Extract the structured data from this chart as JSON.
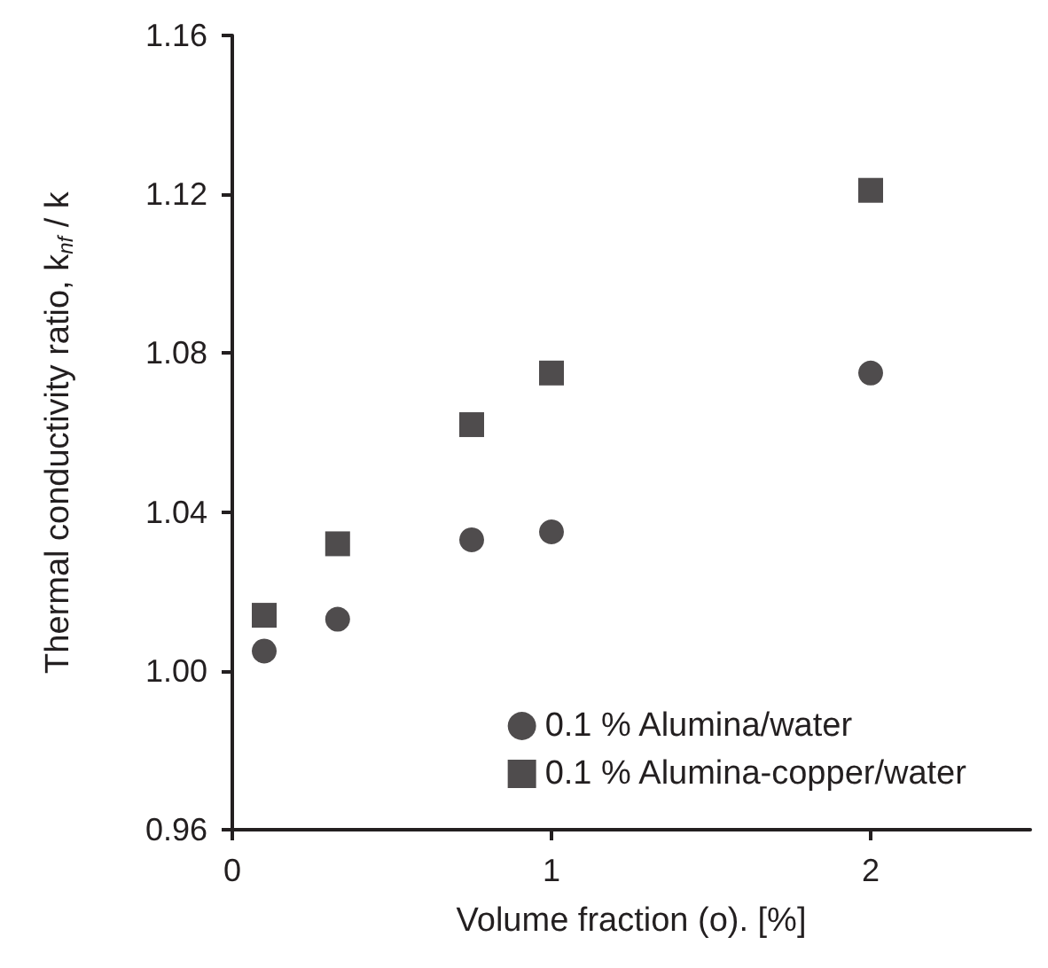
{
  "chart_data": {
    "type": "scatter",
    "xlabel": "Volume fraction (o). [%]",
    "ylabel": "Thermal conductivity ratio, k$_{nf}$ / k",
    "x": [
      0.1,
      0.33,
      0.75,
      1,
      2
    ],
    "series": [
      {
        "name": "0.1 % Alumina/water",
        "color": "#231f20",
        "marker": "circle",
        "values": [
          1.005,
          1.013,
          1.033,
          1.035,
          1.075
        ]
      },
      {
        "name": "0.1 % Alumina-copper/water",
        "color": "#231f20",
        "marker": "square",
        "values": [
          1.014,
          1.032,
          1.062,
          1.075,
          1.121
        ]
      }
    ],
    "xlim": [
      0,
      2.5
    ],
    "xticks": [
      0,
      1,
      2
    ],
    "ylim": [
      0.96,
      1.16
    ],
    "yticks": [
      0.96,
      {
        "value": 1,
        "label": "1.00"
      },
      1.04,
      1.08,
      1.12,
      1.16
    ],
    "grid": false,
    "legend": "bottom right"
  }
}
